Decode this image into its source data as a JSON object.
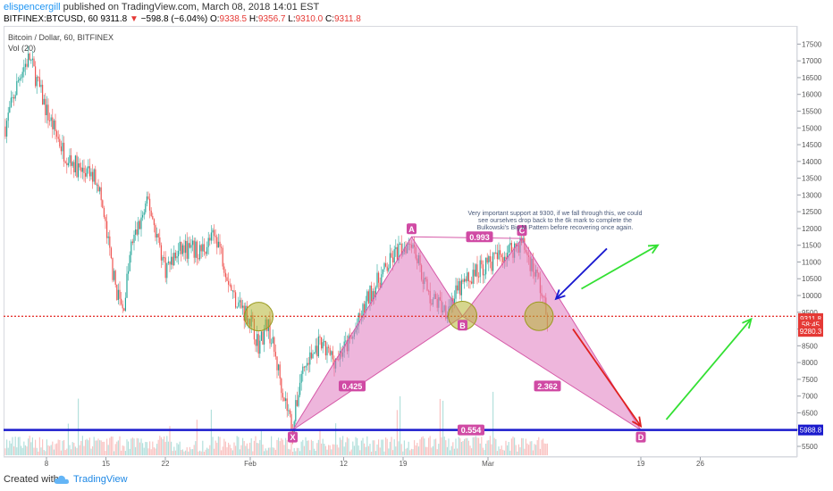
{
  "header": {
    "user": "elispencergill",
    "published": "published on TradingView.com, March 08, 2018 14:01 EST",
    "symbol": "BITFINEX:BTCUSD, 60",
    "last": "9311.8",
    "change": "−598.8 (−6.04%)",
    "open_label": "O:",
    "open": "9338.5",
    "high_label": "H:",
    "high": "9356.7",
    "low_label": "L:",
    "low": "9310.0",
    "close_label": "C:",
    "close": "9311.8"
  },
  "legend": {
    "title": "Bitcoin / Dollar, 60, BITFINEX",
    "volume": "Vol (20)"
  },
  "footer": {
    "created_with": "Created with",
    "brand": "TradingView"
  },
  "colors": {
    "up": "#26a69a",
    "down": "#ef5350",
    "pattern_fill": "#e07ac0",
    "pattern_line": "#d65aa8",
    "hline": "#1a1acd",
    "support": "#e53935",
    "arrow_up": "#33e033",
    "arrow_down": "#e02020",
    "arrow_blue": "#1a1ad0",
    "circle": "#b4b432"
  },
  "chart_data": {
    "type": "candlestick",
    "title": "Bitcoin / Dollar, 60, BITFINEX",
    "ylim": [
      5300,
      17900
    ],
    "y_ticks": [
      5500,
      6000,
      6500,
      7000,
      7500,
      8000,
      8500,
      9000,
      9500,
      10000,
      10500,
      11000,
      11500,
      12000,
      12500,
      13000,
      13500,
      14000,
      14500,
      15000,
      15500,
      16000,
      16500,
      17000,
      17500
    ],
    "x_ticks": [
      "8",
      "15",
      "22",
      "Feb",
      "12",
      "19",
      "Mar",
      "19",
      "26"
    ],
    "price_path": [
      {
        "date": "2018-01-03",
        "price": 14900
      },
      {
        "date": "2018-01-05",
        "price": 16700
      },
      {
        "date": "2018-01-06",
        "price": 17100
      },
      {
        "date": "2018-01-08",
        "price": 15500
      },
      {
        "date": "2018-01-10",
        "price": 14300
      },
      {
        "date": "2018-01-12",
        "price": 13700
      },
      {
        "date": "2018-01-14",
        "price": 13500
      },
      {
        "date": "2018-01-16",
        "price": 10400
      },
      {
        "date": "2018-01-17",
        "price": 9500
      },
      {
        "date": "2018-01-18",
        "price": 11500
      },
      {
        "date": "2018-01-20",
        "price": 12800
      },
      {
        "date": "2018-01-22",
        "price": 10800
      },
      {
        "date": "2018-01-24",
        "price": 11400
      },
      {
        "date": "2018-01-26",
        "price": 11300
      },
      {
        "date": "2018-01-28",
        "price": 11800
      },
      {
        "date": "2018-01-30",
        "price": 10000
      },
      {
        "date": "2018-02-01",
        "price": 9300
      },
      {
        "date": "2018-02-02",
        "price": 8500
      },
      {
        "date": "2018-02-03",
        "price": 9200
      },
      {
        "date": "2018-02-05",
        "price": 7000
      },
      {
        "date": "2018-02-06",
        "price": 6000
      },
      {
        "date": "2018-02-07",
        "price": 7700
      },
      {
        "date": "2018-02-09",
        "price": 8500
      },
      {
        "date": "2018-02-11",
        "price": 8100
      },
      {
        "date": "2018-02-13",
        "price": 8700
      },
      {
        "date": "2018-02-15",
        "price": 10000
      },
      {
        "date": "2018-02-18",
        "price": 11200
      },
      {
        "date": "2018-02-20",
        "price": 11700
      },
      {
        "date": "2018-02-22",
        "price": 10000
      },
      {
        "date": "2018-02-24",
        "price": 9600
      },
      {
        "date": "2018-02-26",
        "price": 10300
      },
      {
        "date": "2018-02-28",
        "price": 10800
      },
      {
        "date": "2018-03-02",
        "price": 11100
      },
      {
        "date": "2018-03-05",
        "price": 11600
      },
      {
        "date": "2018-03-07",
        "price": 10400
      },
      {
        "date": "2018-03-08",
        "price": 9300
      }
    ],
    "pattern": {
      "name": "XABCD",
      "points": [
        {
          "label": "X",
          "date": "2018-02-06",
          "price": 5988.8
        },
        {
          "label": "A",
          "date": "2018-02-20",
          "price": 11750
        },
        {
          "label": "B",
          "date": "2018-02-26",
          "price": 9380
        },
        {
          "label": "C",
          "date": "2018-03-05",
          "price": 11700
        },
        {
          "label": "D",
          "date": "2018-03-19",
          "price": 5988.8
        }
      ],
      "ratios": [
        {
          "label": "0.425",
          "date": "2018-02-13",
          "price": 7300
        },
        {
          "label": "0.993",
          "date": "2018-02-28",
          "price": 11750
        },
        {
          "label": "2.362",
          "date": "2018-03-08",
          "price": 7300
        },
        {
          "label": "0.554",
          "date": "2018-02-27",
          "price": 5988.8
        }
      ]
    },
    "horizontal_lines": [
      {
        "name": "support",
        "price": 9380,
        "style": "dotted"
      },
      {
        "name": "pattern-low",
        "price": 5988.8,
        "style": "solid"
      }
    ],
    "price_labels": [
      {
        "text": "9311.8",
        "price": 9311.8
      },
      {
        "text": "58:45",
        "price": 9130
      },
      {
        "text": "9280.3",
        "price": 8930
      },
      {
        "text": "5988.8",
        "price": 5988.8
      }
    ],
    "circles": [
      {
        "date": "2018-02-02",
        "price": 9370
      },
      {
        "date": "2018-02-26",
        "price": 9400
      },
      {
        "date": "2018-03-07",
        "price": 9380
      }
    ],
    "arrows": [
      {
        "color": "arrow_blue",
        "from": {
          "date": "2018-03-15",
          "price": 11400
        },
        "to": {
          "date": "2018-03-09",
          "price": 9900
        }
      },
      {
        "color": "arrow_up",
        "from": {
          "date": "2018-03-12",
          "price": 10200
        },
        "to": {
          "date": "2018-03-21",
          "price": 11500
        }
      },
      {
        "color": "arrow_down",
        "from": {
          "date": "2018-03-11",
          "price": 9000
        },
        "to": {
          "date": "2018-03-19",
          "price": 6100
        }
      },
      {
        "color": "arrow_up",
        "from": {
          "date": "2018-03-22",
          "price": 6300
        },
        "to": {
          "date": "2018-04-01",
          "price": 9300
        }
      }
    ],
    "annotation": "Very important support at 9300, if we fall through this, we could see ourselves drop back to the 6k mark to complete the Bulkowski's Big M Pattern before recovering once again."
  }
}
